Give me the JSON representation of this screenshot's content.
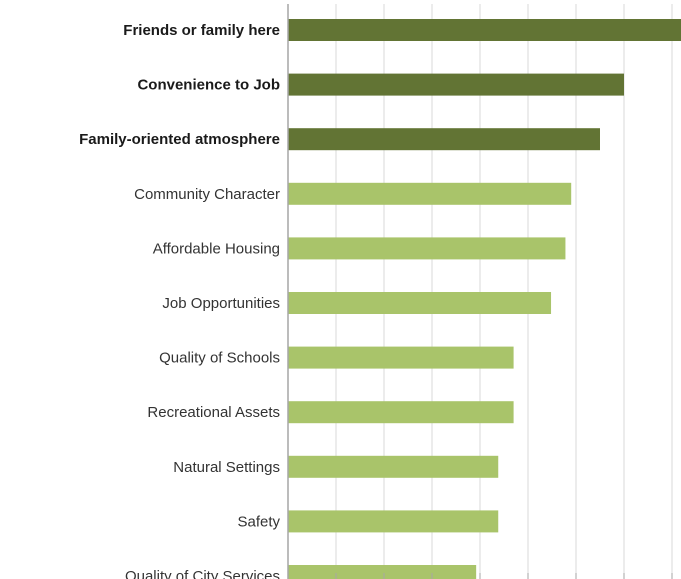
{
  "chart_data": {
    "type": "bar",
    "orientation": "horizontal",
    "categories": [
      "Friends or family here",
      "Convenience to Job",
      "Family-oriented atmosphere",
      "Community Character",
      "Affordable Housing",
      "Job Opportunities",
      "Quality of Schools",
      "Recreational Assets",
      "Natural Settings",
      "Safety",
      "Quality of City Services"
    ],
    "values": [
      41,
      35,
      32.5,
      29.5,
      28.9,
      27.4,
      23.5,
      23.5,
      21.9,
      21.9,
      19.6
    ],
    "highlighted": [
      true,
      true,
      true,
      false,
      false,
      false,
      false,
      false,
      false,
      false,
      false
    ],
    "xlim": [
      0,
      42
    ],
    "x_gridline_step": 5,
    "grid": true,
    "title": "",
    "xlabel": "",
    "ylabel": "",
    "colors": {
      "highlight_bar": "#627434",
      "normal_bar": "#a9c46a",
      "gridline": "#d9d9d9",
      "axis": "#a6a6a6"
    }
  }
}
